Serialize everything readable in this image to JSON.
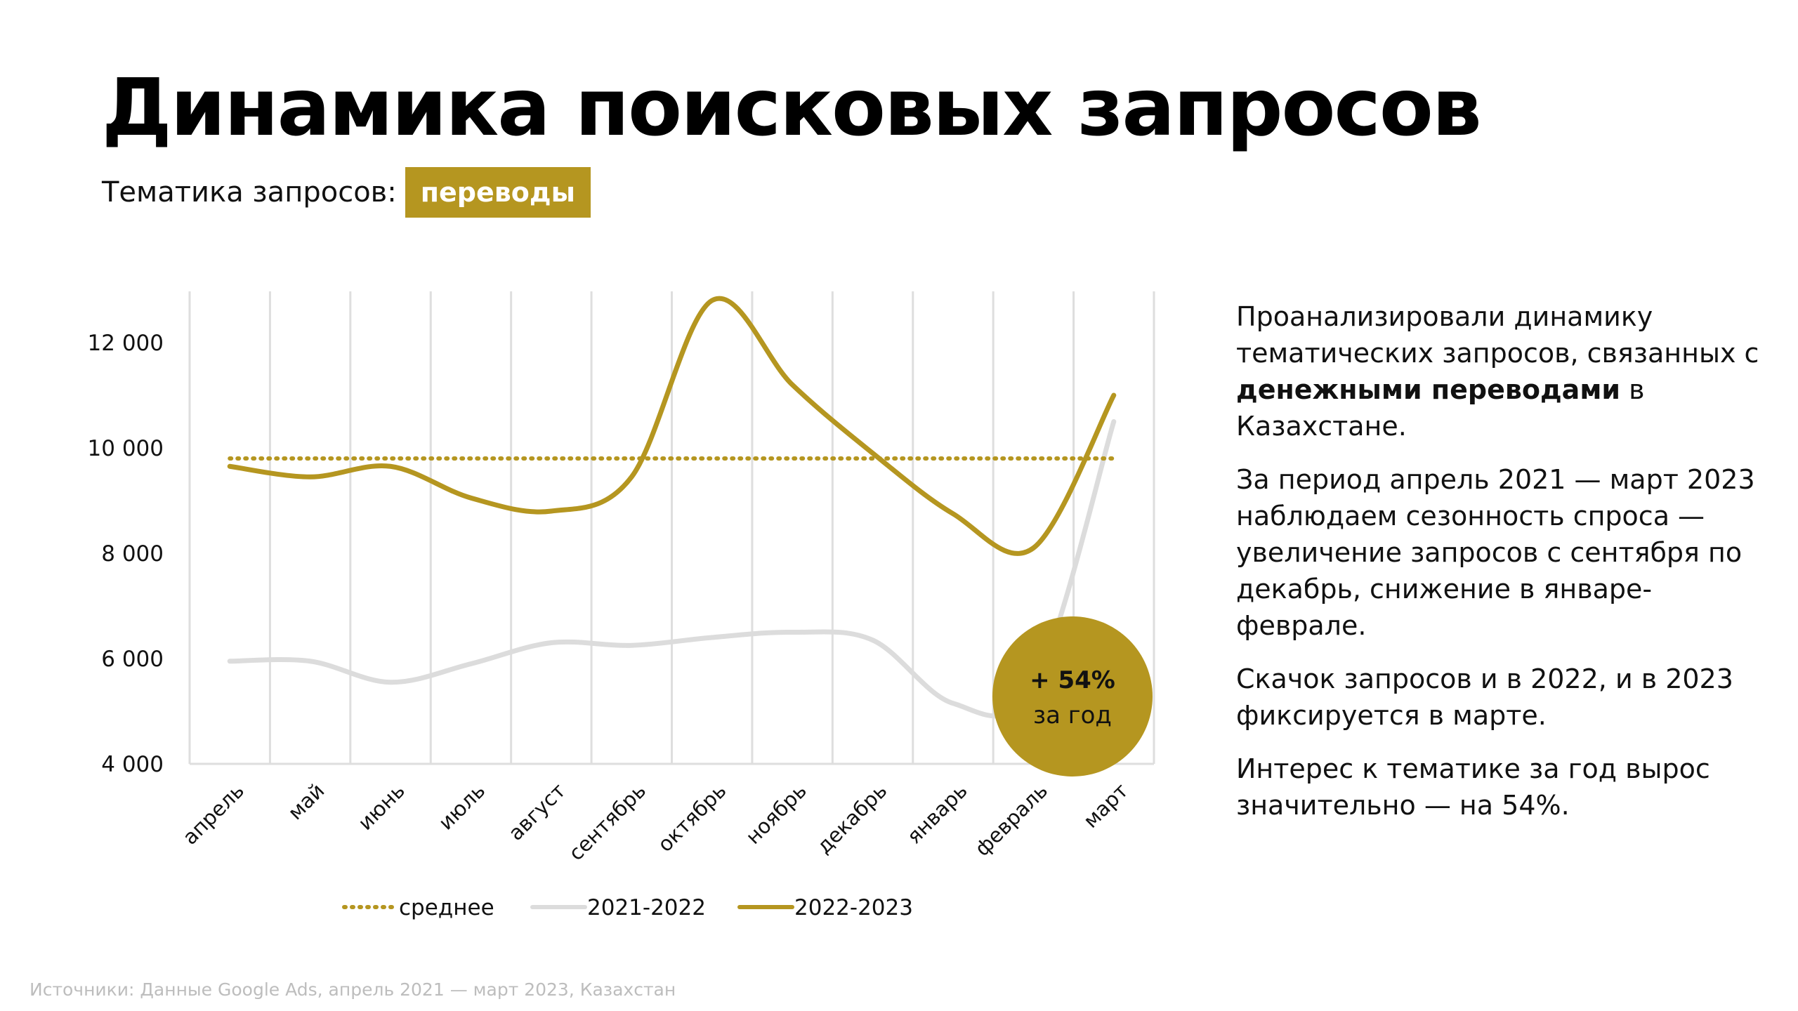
{
  "title": "Динамика поисковых запросов",
  "topic": {
    "label": "Тематика запросов:",
    "value": "переводы"
  },
  "description": {
    "p1_prefix": "Проанализировали динамику тематических запросов, связанных с ",
    "p1_bold": "денежными переводами",
    "p1_suffix": " в Казахстане.",
    "p2": "За период апрель 2021 — март 2023 наблюдаем сезонность спроса — увеличение запросов с сентября по декабрь, снижение в январе-феврале.",
    "p3": "Скачок запросов и в 2022, и в 2023 фиксируется в марте.",
    "p4": "Интерес к тематике за год вырос значительно — на 54%."
  },
  "source": "Источники: Данные Google Ads, апрель 2021 — март 2023, Казахстан",
  "colors": {
    "accent": "#b59620",
    "series_2021": "#dcdcdc",
    "grid": "#dedede"
  },
  "chart_data": {
    "type": "line",
    "categories": [
      "апрель",
      "май",
      "июнь",
      "июль",
      "август",
      "сентябрь",
      "октябрь",
      "ноябрь",
      "декабрь",
      "январь",
      "февраль",
      "март"
    ],
    "y_ticks": [
      "4 000",
      "6 000",
      "8 000",
      "10 000",
      "12 000"
    ],
    "ylim": [
      4000,
      13000
    ],
    "series": [
      {
        "name": "среднее",
        "style": "dotted",
        "color": "#b59620",
        "values": [
          9800,
          9800,
          9800,
          9800,
          9800,
          9800,
          9800,
          9800,
          9800,
          9800,
          9800,
          9800
        ]
      },
      {
        "name": "2021-2022",
        "style": "solid",
        "color": "#dcdcdc",
        "values": [
          5950,
          5950,
          5550,
          5900,
          6300,
          6250,
          6400,
          6500,
          6350,
          5150,
          5450,
          10500
        ]
      },
      {
        "name": "2022-2023",
        "style": "solid",
        "color": "#b59620",
        "values": [
          9650,
          9450,
          9650,
          9050,
          8800,
          9450,
          12800,
          11200,
          9900,
          8750,
          8100,
          11000
        ]
      }
    ],
    "annotation": {
      "value": "+ 54%",
      "label": "за год",
      "color": "#b59620"
    },
    "legend_position": "bottom",
    "grid": "vertical"
  }
}
